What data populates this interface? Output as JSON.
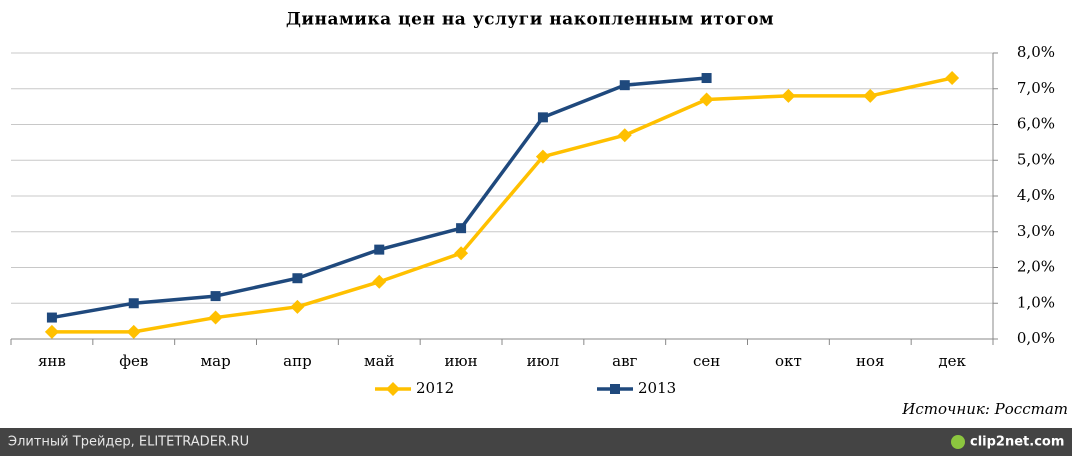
{
  "chart_data": {
    "type": "line",
    "title": "Динамика цен на услуги накопленным итогом",
    "categories": [
      "янв",
      "фев",
      "мар",
      "апр",
      "май",
      "июн",
      "июл",
      "авг",
      "сен",
      "окт",
      "ноя",
      "дек"
    ],
    "series": [
      {
        "name": "2012",
        "color": "#ffc000",
        "marker": "diamond",
        "values": [
          0.2,
          0.2,
          0.6,
          0.9,
          1.6,
          2.4,
          5.1,
          5.7,
          6.7,
          6.8,
          6.8,
          7.3
        ]
      },
      {
        "name": "2013",
        "color": "#1f497d",
        "marker": "square",
        "values": [
          0.6,
          1.0,
          1.2,
          1.7,
          2.5,
          3.1,
          6.2,
          7.1,
          7.3,
          null,
          null,
          null
        ]
      }
    ],
    "ylim": [
      0,
      8
    ],
    "yticks": [
      {
        "value": 0,
        "label": "0,0%"
      },
      {
        "value": 1,
        "label": "1,0%"
      },
      {
        "value": 2,
        "label": "2,0%"
      },
      {
        "value": 3,
        "label": "3,0%"
      },
      {
        "value": 4,
        "label": "4,0%"
      },
      {
        "value": 5,
        "label": "5,0%"
      },
      {
        "value": 6,
        "label": "6,0%"
      },
      {
        "value": 7,
        "label": "7,0%"
      },
      {
        "value": 8,
        "label": "8,0%"
      }
    ],
    "grid": true,
    "legend": "bottom",
    "source": "Источник: Росстат"
  },
  "footer": {
    "left": "Элитный Трейдер, ELITETRADER.RU",
    "right": "clip2net.com"
  }
}
